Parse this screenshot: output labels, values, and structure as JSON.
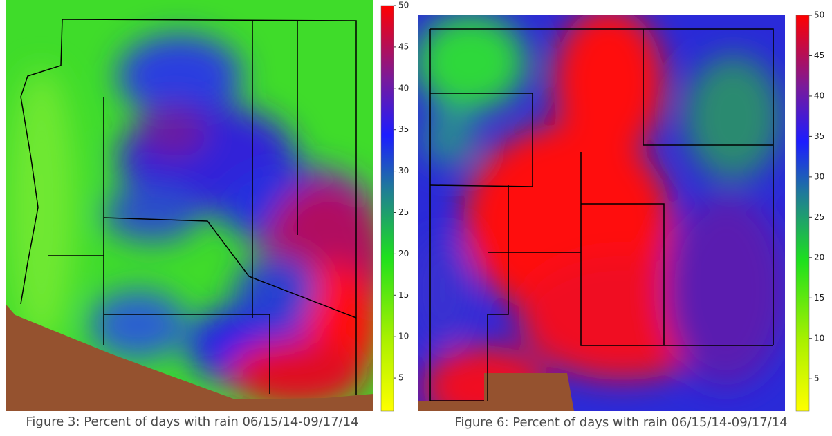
{
  "figures": [
    {
      "caption": "Figure 3: Percent of days with rain 06/15/14-09/17/14",
      "colorbar": {
        "lim": [
          1,
          50
        ],
        "ticks": [
          5,
          10,
          15,
          20,
          25,
          30,
          35,
          40,
          45,
          50
        ]
      }
    },
    {
      "caption": "Figure 6: Percent of days with rain 06/15/14-09/17/14",
      "colorbar": {
        "lim": [
          1,
          50
        ],
        "ticks": [
          5,
          10,
          15,
          20,
          25,
          30,
          35,
          40,
          45,
          50
        ]
      }
    }
  ]
}
